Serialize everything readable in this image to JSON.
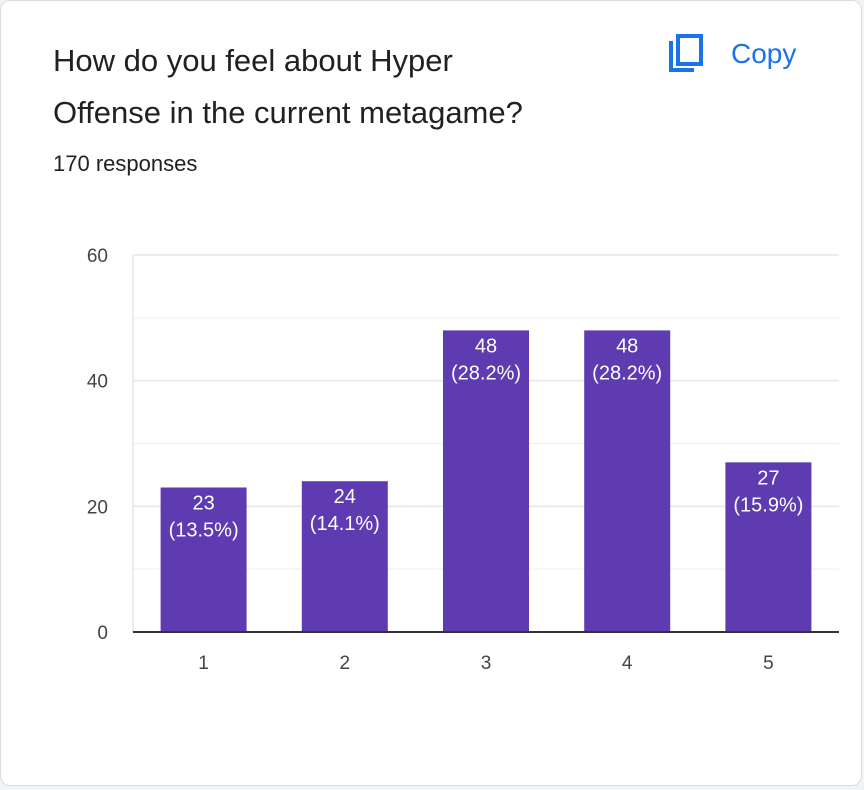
{
  "question": {
    "title_line1": "How do you feel about Hyper",
    "title_line2": "Offense in the current metagame?",
    "responses": "170 responses"
  },
  "copy": {
    "label": "Copy",
    "icon": "copy-icon",
    "color": "#1a73e8"
  },
  "chart_data": {
    "type": "bar",
    "categories": [
      "1",
      "2",
      "3",
      "4",
      "5"
    ],
    "values": [
      23,
      24,
      48,
      48,
      27
    ],
    "data_labels": [
      [
        "23",
        "(13.5%)"
      ],
      [
        "24",
        "(14.1%)"
      ],
      [
        "48",
        "(28.2%)"
      ],
      [
        "48",
        "(28.2%)"
      ],
      [
        "27",
        "(15.9%)"
      ]
    ],
    "title": "",
    "xlabel": "",
    "ylabel": "",
    "ylim": [
      0,
      60
    ],
    "yticks": [
      0,
      20,
      40,
      60
    ],
    "grid": true,
    "bar_color": "#5e3bb0"
  }
}
